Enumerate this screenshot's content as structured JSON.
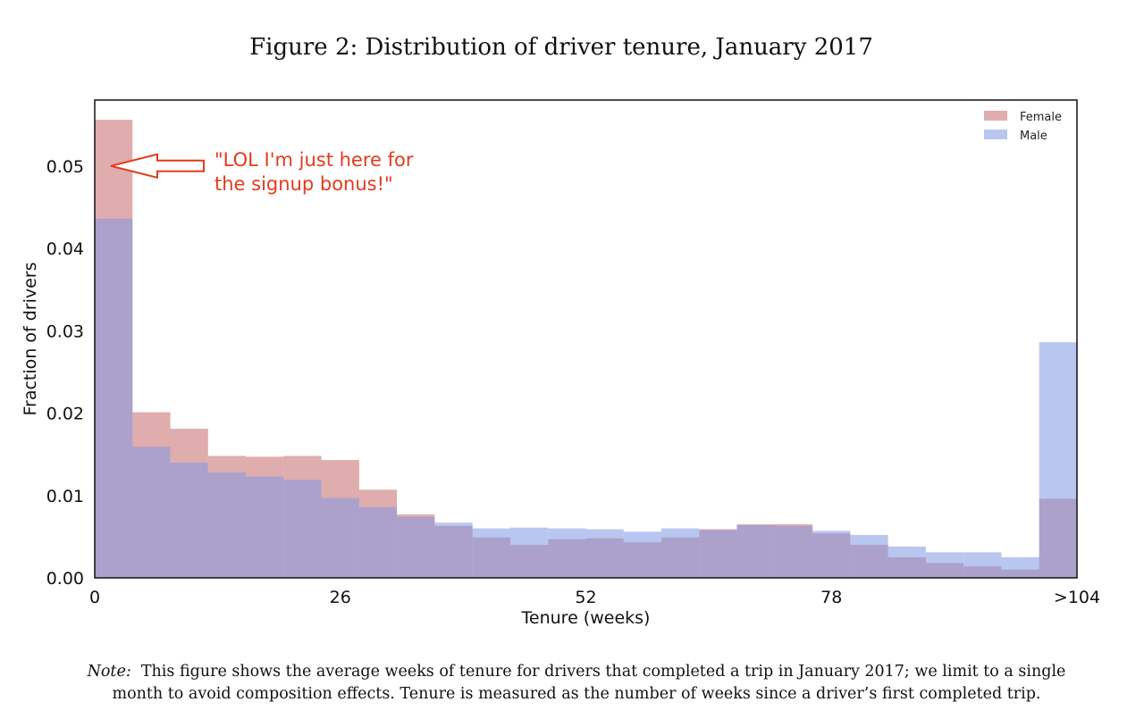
{
  "figure": {
    "title": "Figure 2:  Distribution of driver tenure, January 2017",
    "note_label": "Note:",
    "note_line1": "This figure shows the average weeks of tenure for drivers that completed a trip in January 2017; we limit to a single",
    "note_line2": "month to avoid composition effects. Tenure is measured as the number of weeks since a driver’s first completed trip."
  },
  "colors": {
    "female": "#c46a6a",
    "male": "#7f98e3",
    "annotation": "#e53a1c"
  },
  "chart_data": {
    "type": "bar",
    "subtype": "overlaid-histogram",
    "xlabel": "Tenure (weeks)",
    "ylabel": "Fraction of drivers",
    "xlim": [
      0,
      104
    ],
    "ylim": [
      0,
      0.058
    ],
    "x_ticks": [
      0,
      26,
      52,
      78,
      104
    ],
    "x_tick_labels": [
      "0",
      "26",
      "52",
      "78",
      ">104"
    ],
    "y_ticks": [
      0,
      0.01,
      0.02,
      0.03,
      0.04,
      0.05
    ],
    "y_tick_labels": [
      "0.00",
      "0.01",
      "0.02",
      "0.03",
      "0.04",
      "0.05"
    ],
    "bin_edges": [
      0,
      4,
      8,
      12,
      16,
      20,
      24,
      28,
      32,
      36,
      40,
      44,
      48,
      52,
      56,
      60,
      64,
      68,
      72,
      76,
      80,
      84,
      88,
      92,
      96,
      100,
      104
    ],
    "legend_position": "top-right",
    "series": [
      {
        "name": "Female",
        "values": [
          0.0556,
          0.0201,
          0.0181,
          0.0148,
          0.0147,
          0.0148,
          0.0143,
          0.0107,
          0.0077,
          0.0063,
          0.0049,
          0.004,
          0.0047,
          0.0048,
          0.0043,
          0.0049,
          0.0059,
          0.0065,
          0.0065,
          0.0054,
          0.004,
          0.0025,
          0.0018,
          0.0014,
          0.001,
          0.0096
        ]
      },
      {
        "name": "Male",
        "values": [
          0.0436,
          0.0159,
          0.014,
          0.0128,
          0.0123,
          0.0119,
          0.0097,
          0.0086,
          0.0074,
          0.0067,
          0.006,
          0.0061,
          0.006,
          0.0059,
          0.0056,
          0.006,
          0.0058,
          0.0064,
          0.0063,
          0.0057,
          0.0052,
          0.0038,
          0.0031,
          0.0031,
          0.0025,
          0.0286
        ]
      }
    ],
    "annotation": {
      "line1": "\"LOL I'm just here for",
      "line2": "the signup bonus!\"",
      "points_to_value": 0.05
    }
  }
}
